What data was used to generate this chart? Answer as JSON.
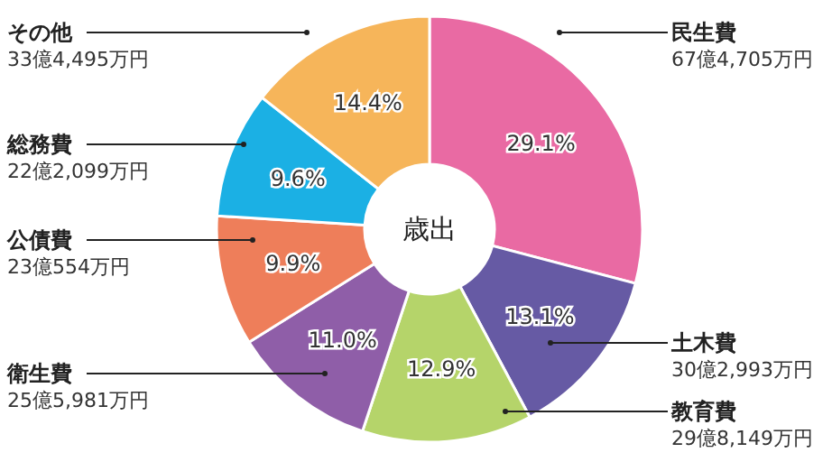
{
  "chart_data": {
    "type": "donut",
    "title": "歳出",
    "categories": [
      "民生費",
      "土木費",
      "教育費",
      "衛生費",
      "公債費",
      "総務費",
      "その他"
    ],
    "values": [
      29.1,
      13.1,
      12.9,
      11.0,
      9.9,
      9.6,
      14.4
    ],
    "value_labels": [
      "29.1%",
      "13.1%",
      "12.9%",
      "11.0%",
      "9.9%",
      "9.6%",
      "14.4%"
    ],
    "colors": [
      "#e96aa3",
      "#665aa4",
      "#b5d46a",
      "#8f5ea8",
      "#ee7e5a",
      "#1bb0e4",
      "#f6b55a"
    ],
    "annotations": [
      "67億4,705万円",
      "30億2,993万円",
      "29億8,149万円",
      "25億5,981万円",
      "23億554万円",
      "22億2,099万円",
      "33億4,495万円"
    ]
  }
}
